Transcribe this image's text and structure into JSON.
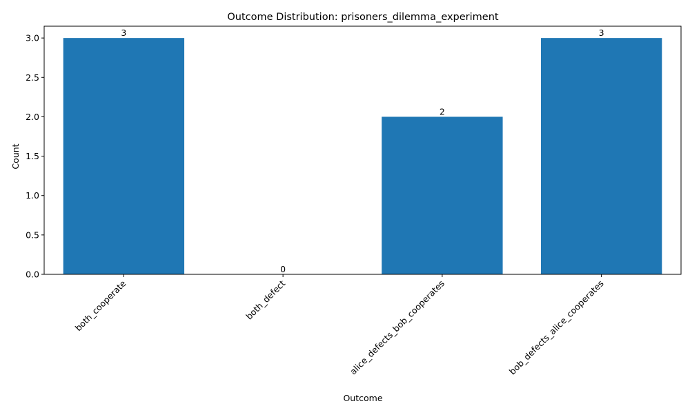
{
  "chart_data": {
    "type": "bar",
    "title": "Outcome Distribution: prisoners_dilemma_experiment",
    "xlabel": "Outcome",
    "ylabel": "Count",
    "categories": [
      "both_cooperate",
      "both_defect",
      "alice_defects_bob_cooperates",
      "bob_defects_alice_cooperates"
    ],
    "values": [
      3,
      0,
      2,
      3
    ],
    "data_labels": [
      "3",
      "0",
      "2",
      "3"
    ],
    "ylim": [
      0,
      3.15
    ],
    "yticks": [
      0.0,
      0.5,
      1.0,
      1.5,
      2.0,
      2.5,
      3.0
    ],
    "ytick_labels": [
      "0.0",
      "0.5",
      "1.0",
      "1.5",
      "2.0",
      "2.5",
      "3.0"
    ],
    "xtick_rotation": 45,
    "grid": false,
    "legend": "none",
    "bar_color": "#1f77b4"
  }
}
